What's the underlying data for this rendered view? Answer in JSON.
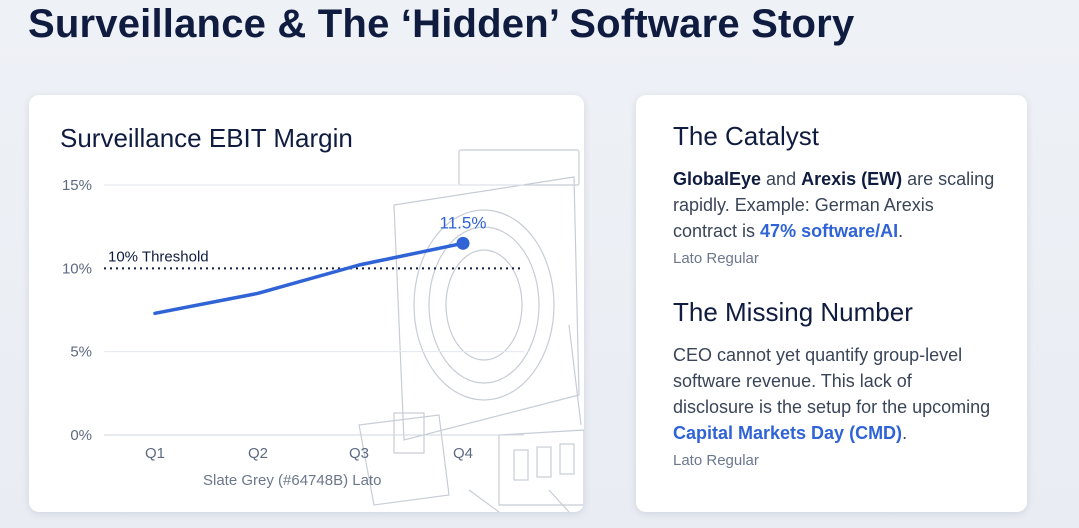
{
  "page_title": "Surveillance & The ‘Hidden’ Software Story",
  "chart_data": {
    "type": "line",
    "title": "Surveillance EBIT Margin",
    "categories": [
      "Q1",
      "Q2",
      "Q3",
      "Q4"
    ],
    "series": [
      {
        "name": "Surveillance EBIT Margin",
        "values": [
          7.3,
          8.5,
          10.2,
          11.5
        ]
      }
    ],
    "ylim": [
      0,
      15
    ],
    "yticks": [
      0,
      5,
      10,
      15
    ],
    "ytick_labels": [
      "0%",
      "5%",
      "10%",
      "15%"
    ],
    "threshold": {
      "value": 10,
      "label": "10% Threshold"
    },
    "data_label": {
      "category": "Q4",
      "text": "11.5%"
    },
    "caption": "Slate Grey (#64748B) Lato",
    "line_color": "#2f63d6"
  },
  "catalyst": {
    "heading": "The Catalyst",
    "term1": "GlobalEye",
    "and": "and",
    "term2": "Arexis (EW)",
    "text1": "are scaling rapidly. Example: German Arexis contract is",
    "highlight": "47% software/AI",
    "end": ".",
    "caption": "Lato Regular"
  },
  "missing": {
    "heading": "The Missing Number",
    "text1": "CEO cannot yet quantify group-level software revenue. This lack of disclosure is the setup for the upcoming",
    "highlight": "Capital Markets Day (CMD)",
    "end": ".",
    "caption": "Lato Regular"
  }
}
